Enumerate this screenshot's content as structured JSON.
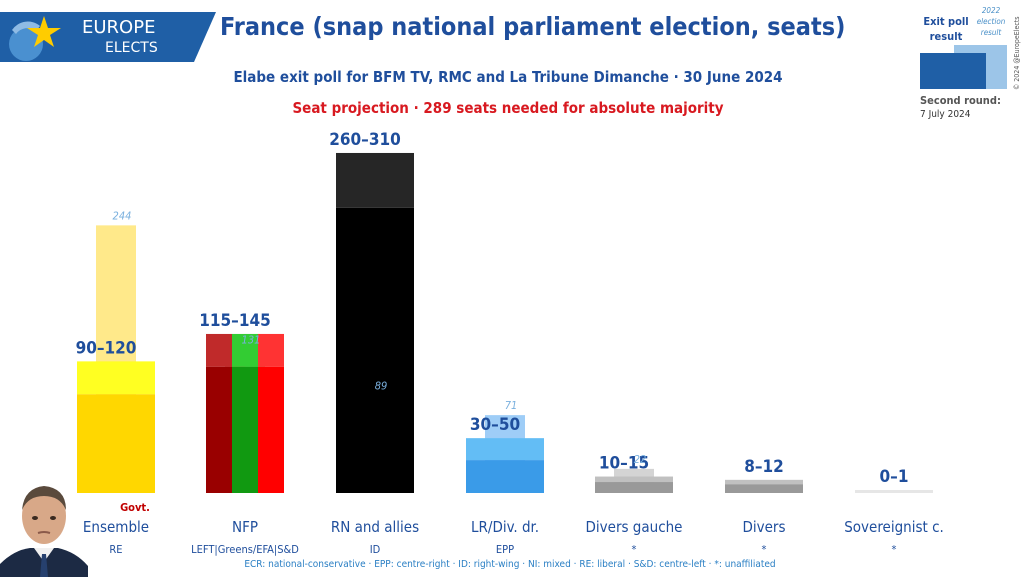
{
  "logo": {
    "line1": "EUROPE",
    "line2": "ELECTS"
  },
  "title": "France (snap national parliament election, seats)",
  "subtitle": "Elabe exit poll for BFM TV, RMC and La Tribune Dimanche · 30 June 2024",
  "projection": "Seat projection · 289 seats needed for absolute majority",
  "legend": {
    "exit_label": "Exit poll result",
    "prev_label": "2022 election result",
    "round_label": "Second round:",
    "round_date": "7 July 2024"
  },
  "copyright": "© 2024 @EuropeElects",
  "footer": "ECR: national-conservative · EPP: centre-right · ID: right-wing · NI: mixed · RE: liberal · S&D: centre-left · *: unaffiliated",
  "govt_label": "Govt.",
  "chart_data": {
    "type": "bar",
    "ylim": [
      0,
      320
    ],
    "categories": [
      "Ensemble",
      "NFP",
      "RN and allies",
      "LR/Div. dr.",
      "Divers gauche",
      "Divers",
      "Sovereignist c."
    ],
    "groups": [
      "RE",
      "LEFT|Greens/EFA|S&D",
      "ID",
      "EPP",
      "*",
      "*",
      "*"
    ],
    "series": [
      {
        "name": "Exit poll (low)",
        "values": [
          90,
          115,
          260,
          30,
          10,
          8,
          0
        ]
      },
      {
        "name": "Exit poll (high)",
        "values": [
          120,
          145,
          310,
          50,
          15,
          12,
          1
        ]
      },
      {
        "name": "2022 election result",
        "values": [
          244,
          131,
          89,
          71,
          22,
          null,
          null
        ]
      }
    ],
    "range_labels": [
      "90–120",
      "115–145",
      "260–310",
      "30–50",
      "10–15",
      "8–12",
      "0–1"
    ],
    "prev_labels": [
      "244",
      "131",
      "89",
      "71",
      "22",
      "",
      ""
    ],
    "colors": {
      "low": [
        "#ffd700",
        null,
        "#000000",
        "#3a9be8",
        "#999999",
        "#999999",
        "#cccccc"
      ],
      "high": [
        "#ffff22",
        null,
        "#262626",
        "#63bdf5",
        "#c0c0c0",
        "#c0c0c0",
        "#e6e6e6"
      ],
      "prev": [
        "#ffe98a",
        null,
        "#7a7a7a",
        "#9ecdf7",
        "#d4d4d4",
        null,
        null
      ],
      "nfp_low": [
        "#990000",
        "#119911",
        "#ff0000"
      ],
      "nfp_high": [
        "#c02a2a",
        "#33cc33",
        "#ff3333"
      ],
      "nfp_prev": [
        "#e87878",
        "#8fc88f"
      ]
    }
  }
}
